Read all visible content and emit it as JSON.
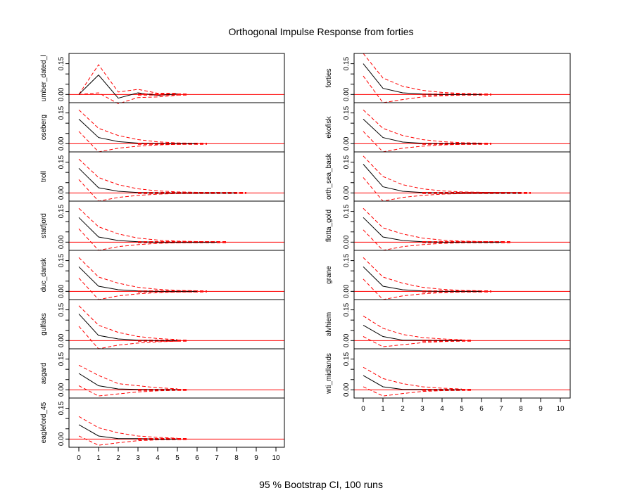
{
  "chart_data": {
    "type": "line",
    "title": "Orthogonal Impulse Response from forties",
    "caption": "95 % Bootstrap CI,  100 runs",
    "x_ticks": [
      "0",
      "1",
      "2",
      "3",
      "4",
      "5",
      "6",
      "7",
      "8",
      "9",
      "10"
    ],
    "xlim": [
      0,
      10
    ],
    "y_ticks": [
      "0.00",
      "0.15"
    ],
    "ylim": [
      -0.04,
      0.2
    ],
    "zero_line_color": "#ff0000",
    "ci_color": "#ff0000",
    "response_color": "#000000",
    "left_column": [
      {
        "label": "umber_dated_l",
        "x_end": 5.5,
        "response": [
          0.0,
          0.095,
          -0.018,
          0.008,
          -0.005,
          0.003
        ],
        "upper": [
          0.0,
          0.145,
          0.012,
          0.025,
          0.006,
          0.006
        ],
        "lower": [
          0.0,
          0.008,
          -0.045,
          -0.015,
          -0.012,
          -0.004
        ]
      },
      {
        "label": "oseberg",
        "x_end": 6.5,
        "response": [
          0.12,
          0.03,
          0.01,
          0.003,
          0.001,
          0.0,
          0.0
        ],
        "upper": [
          0.165,
          0.075,
          0.04,
          0.02,
          0.009,
          0.004,
          0.002
        ],
        "lower": [
          0.06,
          -0.04,
          -0.022,
          -0.012,
          -0.006,
          -0.003,
          -0.001
        ]
      },
      {
        "label": "troll",
        "x_end": 8.5,
        "response": [
          0.12,
          0.025,
          0.008,
          0.002,
          0.0,
          0.0,
          0.0,
          0.0,
          0.0
        ],
        "upper": [
          0.165,
          0.075,
          0.04,
          0.02,
          0.01,
          0.005,
          0.003,
          0.002,
          0.001
        ],
        "lower": [
          0.065,
          -0.04,
          -0.022,
          -0.012,
          -0.006,
          -0.003,
          -0.002,
          -0.001,
          0.0
        ]
      },
      {
        "label": "statfjord",
        "x_end": 7.5,
        "response": [
          0.12,
          0.025,
          0.008,
          0.002,
          0.0,
          0.0,
          0.0,
          0.0
        ],
        "upper": [
          0.165,
          0.075,
          0.04,
          0.02,
          0.01,
          0.005,
          0.003,
          0.002
        ],
        "lower": [
          0.065,
          -0.04,
          -0.022,
          -0.012,
          -0.006,
          -0.003,
          -0.002,
          -0.001
        ]
      },
      {
        "label": "duc_dansk",
        "x_end": 6.5,
        "response": [
          0.12,
          0.025,
          0.008,
          0.002,
          0.0,
          0.0,
          0.0
        ],
        "upper": [
          0.165,
          0.07,
          0.04,
          0.02,
          0.01,
          0.005,
          0.003
        ],
        "lower": [
          0.065,
          -0.04,
          -0.022,
          -0.012,
          -0.006,
          -0.003,
          -0.002
        ]
      },
      {
        "label": "gulfaks",
        "x_end": 5.5,
        "response": [
          0.13,
          0.025,
          0.008,
          0.002,
          0.0,
          0.0
        ],
        "upper": [
          0.17,
          0.075,
          0.04,
          0.02,
          0.01,
          0.005
        ],
        "lower": [
          0.07,
          -0.04,
          -0.022,
          -0.012,
          -0.006,
          -0.003
        ]
      },
      {
        "label": "asgard",
        "x_end": 5.5,
        "response": [
          0.08,
          0.02,
          0.004,
          0.002,
          0.0,
          0.0
        ],
        "upper": [
          0.12,
          0.07,
          0.03,
          0.02,
          0.01,
          0.005
        ],
        "lower": [
          0.02,
          -0.03,
          -0.02,
          -0.01,
          -0.005,
          -0.002
        ]
      },
      {
        "label": "eagleford_45",
        "x_end": 5.5,
        "response": [
          0.07,
          0.015,
          0.002,
          0.002,
          0.0,
          0.0
        ],
        "upper": [
          0.11,
          0.055,
          0.03,
          0.015,
          0.008,
          0.004
        ],
        "lower": [
          0.015,
          -0.03,
          -0.018,
          -0.008,
          -0.004,
          -0.002
        ]
      }
    ],
    "right_column": [
      {
        "label": "forties",
        "x_end": 6.5,
        "response": [
          0.15,
          0.03,
          0.008,
          0.002,
          0.0,
          0.0,
          0.0
        ],
        "upper": [
          0.2,
          0.08,
          0.04,
          0.02,
          0.01,
          0.005,
          0.003
        ],
        "lower": [
          0.09,
          -0.04,
          -0.025,
          -0.012,
          -0.006,
          -0.003,
          -0.002
        ]
      },
      {
        "label": "ekofisk",
        "x_end": 6.5,
        "response": [
          0.12,
          0.03,
          0.008,
          0.002,
          0.0,
          0.0,
          0.0
        ],
        "upper": [
          0.165,
          0.075,
          0.04,
          0.02,
          0.01,
          0.005,
          0.003
        ],
        "lower": [
          0.06,
          -0.04,
          -0.022,
          -0.012,
          -0.006,
          -0.003,
          -0.002
        ]
      },
      {
        "label": "orth_sea_bask",
        "x_end": 8.5,
        "response": [
          0.14,
          0.03,
          0.008,
          0.002,
          0.0,
          0.0,
          0.0,
          0.0,
          0.0
        ],
        "upper": [
          0.18,
          0.08,
          0.04,
          0.02,
          0.01,
          0.005,
          0.003,
          0.002,
          0.001
        ],
        "lower": [
          0.075,
          -0.04,
          -0.022,
          -0.012,
          -0.006,
          -0.003,
          -0.002,
          -0.001,
          0.0
        ]
      },
      {
        "label": "flotta_gold",
        "x_end": 7.5,
        "response": [
          0.12,
          0.025,
          0.008,
          0.002,
          0.0,
          0.0,
          0.0,
          0.0
        ],
        "upper": [
          0.165,
          0.07,
          0.04,
          0.02,
          0.01,
          0.005,
          0.003,
          0.002
        ],
        "lower": [
          0.06,
          -0.04,
          -0.022,
          -0.012,
          -0.006,
          -0.003,
          -0.002,
          -0.001
        ]
      },
      {
        "label": "grane",
        "x_end": 6.5,
        "response": [
          0.12,
          0.025,
          0.008,
          0.002,
          0.0,
          0.0,
          0.0
        ],
        "upper": [
          0.165,
          0.07,
          0.04,
          0.02,
          0.01,
          0.005,
          0.003
        ],
        "lower": [
          0.06,
          -0.04,
          -0.022,
          -0.012,
          -0.006,
          -0.003,
          -0.002
        ]
      },
      {
        "label": "alvhiem",
        "x_end": 5.5,
        "response": [
          0.075,
          0.02,
          0.002,
          0.002,
          0.0,
          0.0
        ],
        "upper": [
          0.12,
          0.06,
          0.03,
          0.015,
          0.008,
          0.004
        ],
        "lower": [
          0.02,
          -0.03,
          -0.02,
          -0.01,
          -0.005,
          -0.002
        ]
      },
      {
        "label": "wti_midlands",
        "x_end": 5.5,
        "response": [
          0.07,
          0.015,
          0.002,
          0.002,
          0.0,
          0.0
        ],
        "upper": [
          0.11,
          0.055,
          0.03,
          0.015,
          0.008,
          0.004
        ],
        "lower": [
          0.015,
          -0.03,
          -0.018,
          -0.008,
          -0.004,
          -0.002
        ]
      }
    ]
  }
}
